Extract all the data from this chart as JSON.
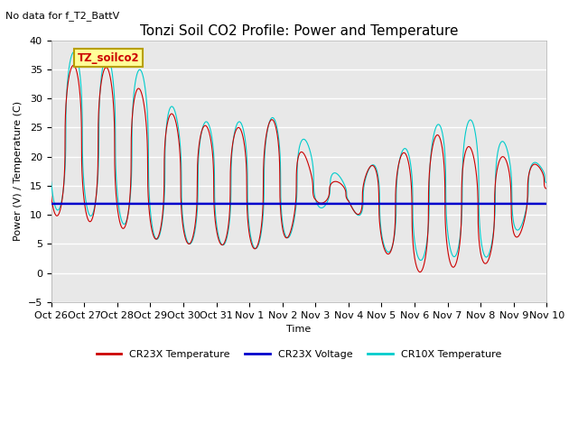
{
  "title": "Tonzi Soil CO2 Profile: Power and Temperature",
  "subtitle": "No data for f_T2_BattV",
  "ylabel": "Power (V) / Temperature (C)",
  "xlabel": "Time",
  "ylim": [
    -5,
    40
  ],
  "yticks": [
    -5,
    0,
    5,
    10,
    15,
    20,
    25,
    30,
    35,
    40
  ],
  "bg_color": "#e8e8e8",
  "grid_color": "white",
  "legend_label_box": "TZ_soilco2",
  "legend_box_color": "#ffff99",
  "legend_box_edge": "#b8a000",
  "voltage_value": 11.9,
  "cr23x_color": "#cc0000",
  "cr10x_color": "#00cccc",
  "voltage_color": "#0000cc",
  "xtick_labels": [
    "Oct 26",
    "Oct 27",
    "Oct 28",
    "Oct 29",
    "Oct 30",
    "Oct 31",
    "Nov 1",
    "Nov 2",
    "Nov 3",
    "Nov 4",
    "Nov 5",
    "Nov 6",
    "Nov 7",
    "Nov 8",
    "Nov 9",
    "Nov 10"
  ],
  "title_fontsize": 11,
  "label_fontsize": 8,
  "tick_fontsize": 8
}
